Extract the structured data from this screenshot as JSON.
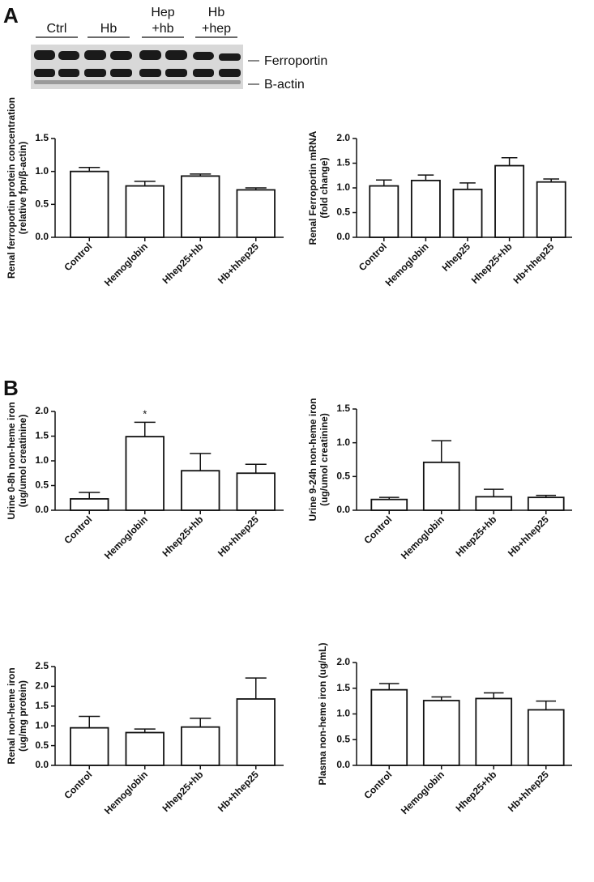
{
  "panel_labels": [
    "A",
    "B"
  ],
  "blot": {
    "lanes": [
      [
        "Ctrl"
      ],
      [
        "Hb"
      ],
      [
        "Hep",
        "+hb"
      ],
      [
        "Hb",
        "+hep"
      ]
    ],
    "bands": [
      "Ferroportin",
      "B-actin"
    ]
  },
  "chart_data": [
    {
      "type": "bar",
      "ylabel": [
        "Renal ferroportin protein concentration",
        "(relative fpn/β-actin)"
      ],
      "categories": [
        "Control",
        "Hemoglobin",
        "Hhep25+hb",
        "Hb+hhep25"
      ],
      "series": [
        {
          "color": "#ffffff",
          "values": [
            1.0,
            0.78,
            0.93,
            0.72
          ],
          "errors": [
            0.06,
            0.07,
            0.03,
            0.03
          ]
        }
      ],
      "ylim": [
        0,
        1.5
      ],
      "yticks": [
        {
          "value": 0,
          "label": "0.0"
        },
        0.5,
        {
          "value": 1,
          "label": "1.0"
        },
        1.5
      ]
    },
    {
      "type": "bar",
      "ylabel": [
        "Renal Ferroportin mRNA",
        "(fold change)"
      ],
      "categories": [
        "Control",
        "Hemoglobin",
        "Hhep25",
        "Hhep25+hb",
        "Hb+hhep25"
      ],
      "series": [
        {
          "color": "#ffffff",
          "values": [
            1.04,
            1.15,
            0.97,
            1.45,
            1.12
          ],
          "errors": [
            0.12,
            0.11,
            0.13,
            0.16,
            0.06
          ]
        }
      ],
      "ylim": [
        0,
        2
      ],
      "yticks": [
        {
          "value": 0,
          "label": "0.0"
        },
        0.5,
        {
          "value": 1,
          "label": "1.0"
        },
        1.5,
        {
          "value": 2,
          "label": "2.0"
        }
      ]
    },
    {
      "type": "bar",
      "ylabel": [
        "Urine 0-8h non-heme iron",
        "(ug/umol creatinine)"
      ],
      "categories": [
        "Control",
        "Hemoglobin",
        "Hhep25+hb",
        "Hb+hhep25"
      ],
      "series": [
        {
          "color": "#ffffff",
          "values": [
            0.23,
            1.49,
            0.8,
            0.75
          ],
          "errors": [
            0.13,
            0.29,
            0.35,
            0.18
          ]
        }
      ],
      "annotations": [
        {
          "text": "*",
          "category": "Hemoglobin"
        }
      ],
      "ylim": [
        0,
        2
      ],
      "yticks": [
        {
          "value": 0,
          "label": "0.0"
        },
        0.5,
        {
          "value": 1,
          "label": "1.0"
        },
        1.5,
        {
          "value": 2,
          "label": "2.0"
        }
      ]
    },
    {
      "type": "bar",
      "ylabel": [
        "Urine 9-24h non-heme iron",
        "(ug/umol creatinine)"
      ],
      "categories": [
        "Control",
        "Hemoglobin",
        "Hhep25+hb",
        "Hb+hhep25"
      ],
      "series": [
        {
          "color": "#ffffff",
          "values": [
            0.16,
            0.71,
            0.2,
            0.19
          ],
          "errors": [
            0.03,
            0.32,
            0.11,
            0.03
          ]
        }
      ],
      "ylim": [
        0,
        1.5
      ],
      "yticks": [
        {
          "value": 0,
          "label": "0.0"
        },
        0.5,
        {
          "value": 1,
          "label": "1.0"
        },
        1.5
      ]
    },
    {
      "type": "bar",
      "ylabel": [
        "Renal non-heme iron",
        "(ug/mg protein)"
      ],
      "categories": [
        "Control",
        "Hemoglobin",
        "Hhep25+hb",
        "Hb+hhep25"
      ],
      "series": [
        {
          "color": "#ffffff",
          "values": [
            0.95,
            0.83,
            0.97,
            1.68
          ],
          "errors": [
            0.29,
            0.09,
            0.22,
            0.53
          ]
        }
      ],
      "ylim": [
        0,
        2.5
      ],
      "yticks": [
        {
          "value": 0,
          "label": "0.0"
        },
        0.5,
        {
          "value": 1,
          "label": "1.0"
        },
        1.5,
        {
          "value": 2,
          "label": "2.0"
        },
        2.5
      ]
    },
    {
      "type": "bar",
      "ylabel": [
        "Plasma non-heme iron (ug/mL)"
      ],
      "categories": [
        "Control",
        "Hemoglobin",
        "Hhep25+hb",
        "Hb+hhep25"
      ],
      "series": [
        {
          "color": "#ffffff",
          "values": [
            1.47,
            1.26,
            1.3,
            1.08
          ],
          "errors": [
            0.12,
            0.07,
            0.11,
            0.17
          ]
        }
      ],
      "ylim": [
        0,
        2
      ],
      "yticks": [
        {
          "value": 0,
          "label": "0.0"
        },
        0.5,
        {
          "value": 1,
          "label": "1.0"
        },
        1.5,
        {
          "value": 2,
          "label": "2.0"
        }
      ]
    }
  ]
}
